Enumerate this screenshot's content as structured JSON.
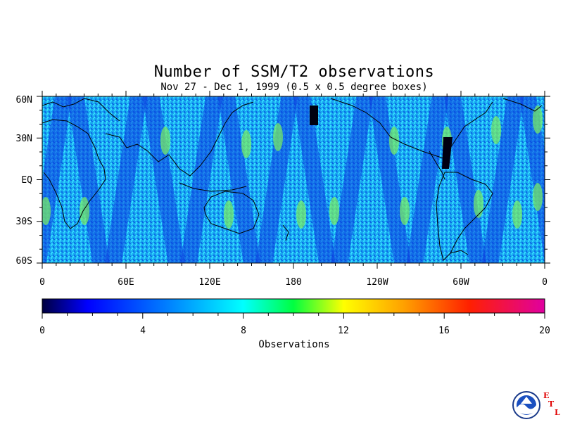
{
  "title": "Number of SSM/T2 observations",
  "subtitle": "Nov 27 - Dec 1, 1999 (0.5 x 0.5 degree boxes)",
  "lat_labels": [
    "60N",
    "30N",
    "EQ",
    "30S",
    "60S"
  ],
  "lon_labels": [
    "0",
    "60E",
    "120E",
    "180",
    "120W",
    "60W",
    "0"
  ],
  "colorbar": {
    "ticks": [
      "0",
      "4",
      "8",
      "12",
      "16",
      "20"
    ],
    "label": "Observations",
    "range": [
      0,
      20
    ],
    "colors": [
      "#000040",
      "#0000ff",
      "#00ffff",
      "#00ff00",
      "#ffff00",
      "#ff8000",
      "#ff0000",
      "#e000a0"
    ]
  },
  "map": {
    "lat_range": [
      -60,
      60
    ],
    "lon_range": [
      0,
      360
    ],
    "background": "#2a5cff",
    "band_color": "#14b6ff",
    "land_color": "#000000"
  },
  "logo": {
    "icon": "noaa-logo-icon",
    "lab_letters": [
      "E",
      "T",
      "L"
    ]
  }
}
